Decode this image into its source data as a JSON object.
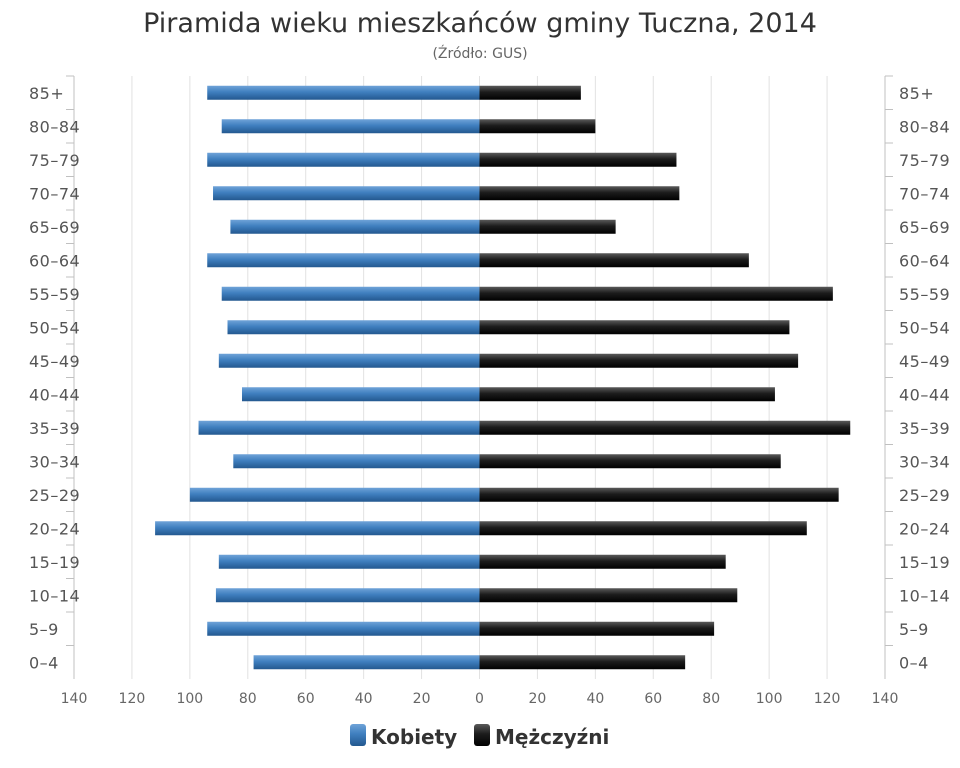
{
  "chart_data": {
    "type": "bar",
    "orientation": "horizontal",
    "layout": "population-pyramid",
    "title": "Piramida wieku mieszkańców gminy Tuczna, 2014",
    "subtitle": "(Źródło: GUS)",
    "categories": [
      "85+",
      "80-84",
      "75-79",
      "70-74",
      "65-69",
      "60-64",
      "55-59",
      "50-54",
      "45-49",
      "40-44",
      "35-39",
      "30-34",
      "25-29",
      "20-24",
      "15-19",
      "10-14",
      "5-9",
      "0-4"
    ],
    "series": [
      {
        "name": "Kobiety",
        "color": "#3f7fbf",
        "side": "left",
        "values": [
          94,
          89,
          94,
          92,
          86,
          94,
          89,
          87,
          90,
          82,
          97,
          85,
          100,
          112,
          90,
          91,
          94,
          78
        ]
      },
      {
        "name": "Mężczyźni",
        "color": "#1c1c1c",
        "side": "right",
        "values": [
          35,
          40,
          68,
          69,
          47,
          93,
          122,
          107,
          110,
          102,
          128,
          104,
          124,
          113,
          85,
          89,
          81,
          71
        ]
      }
    ],
    "xlim": [
      -140,
      140
    ],
    "x_ticks": [
      "140",
      "120",
      "100",
      "80",
      "60",
      "40",
      "20",
      "0",
      "20",
      "40",
      "60",
      "80",
      "100",
      "120",
      "140"
    ],
    "grid": true,
    "legend": "bottom-center"
  }
}
